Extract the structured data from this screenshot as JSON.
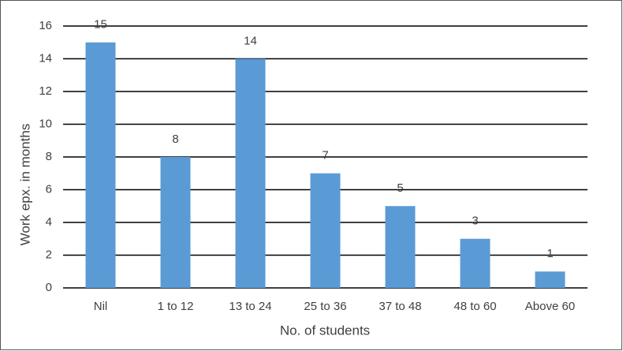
{
  "chart_data": {
    "type": "bar",
    "x_label": "No. of students",
    "y_label": "Work epx. in months",
    "categories": [
      "Nil",
      "1 to 12",
      "13 to 24",
      "25 to 36",
      "37 to 48",
      "48 to 60",
      "Above 60"
    ],
    "values": [
      15,
      8,
      14,
      7,
      5,
      3,
      1
    ],
    "color": "#5b9bd5",
    "ylim": [
      0,
      16
    ],
    "yticks": [
      0,
      2,
      4,
      6,
      8,
      10,
      12,
      14,
      16
    ],
    "grid": true
  }
}
